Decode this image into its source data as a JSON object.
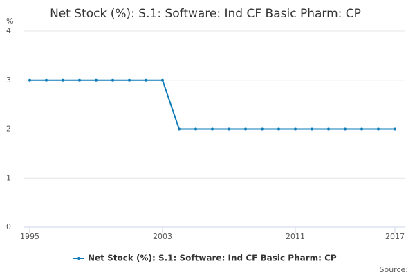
{
  "chart_data": {
    "type": "line",
    "title": "Net Stock (%): S.1: Software: Ind CF Basic Pharm: CP",
    "y_unit": "%",
    "x": [
      1995,
      1996,
      1997,
      1998,
      1999,
      2000,
      2001,
      2002,
      2003,
      2004,
      2005,
      2006,
      2007,
      2008,
      2009,
      2010,
      2011,
      2012,
      2013,
      2014,
      2015,
      2016,
      2017
    ],
    "series": [
      {
        "name": "Net Stock (%): S.1: Software: Ind CF Basic Pharm: CP",
        "color": "#0e7bb8",
        "values": [
          3,
          3,
          3,
          3,
          3,
          3,
          3,
          3,
          3,
          2,
          2,
          2,
          2,
          2,
          2,
          2,
          2,
          2,
          2,
          2,
          2,
          2,
          2
        ]
      }
    ],
    "xlim": [
      1995,
      2017
    ],
    "xticks": [
      1995,
      2003,
      2011,
      2017
    ],
    "ylim": [
      0,
      4
    ],
    "yticks": [
      0,
      1,
      2,
      3,
      4
    ],
    "grid": true,
    "source": "Source:"
  }
}
